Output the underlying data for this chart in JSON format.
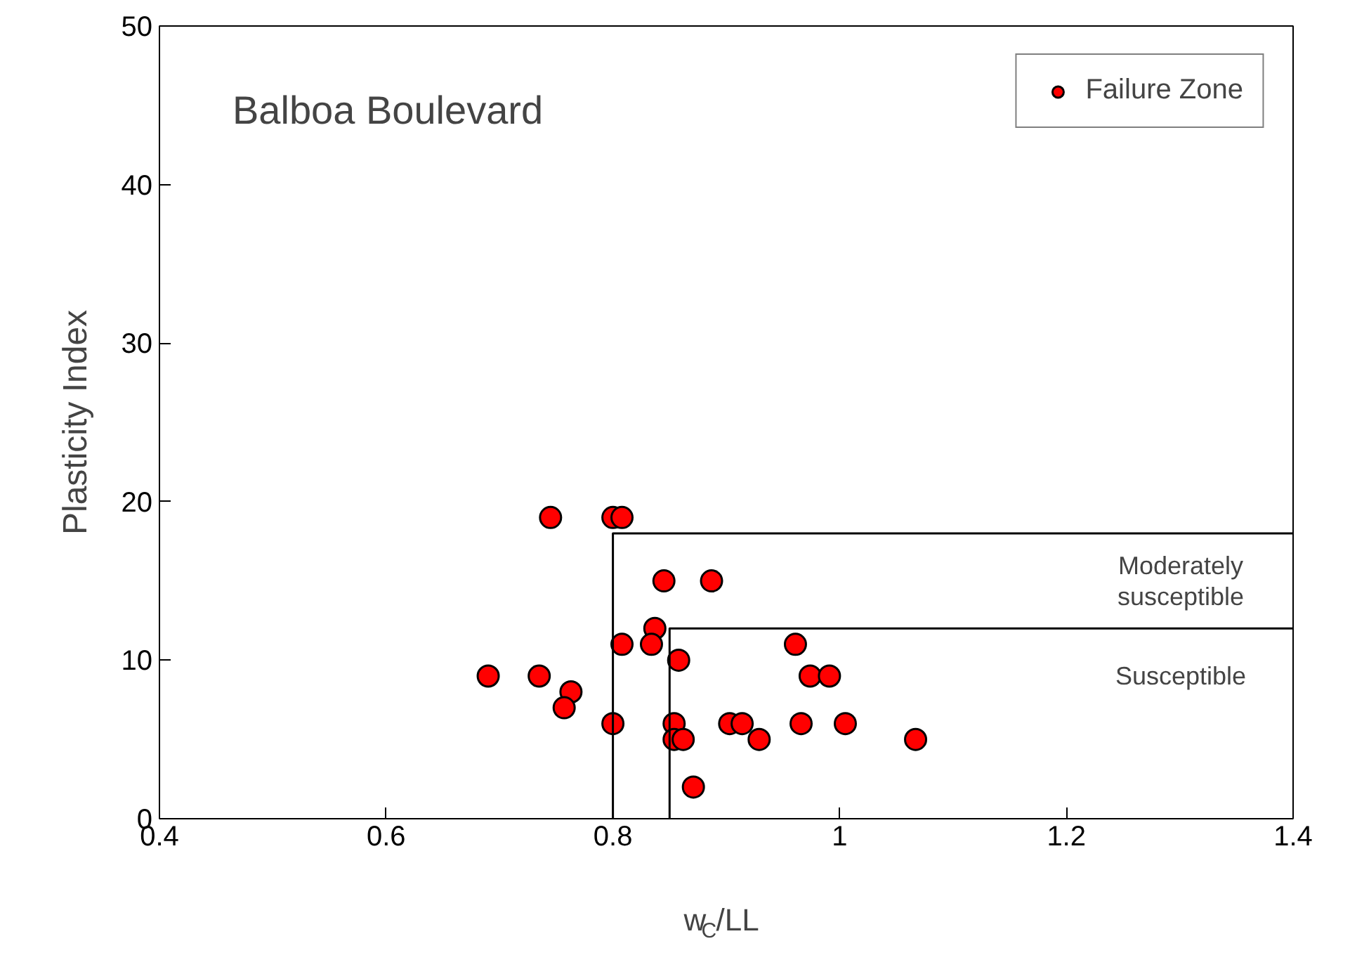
{
  "chart_data": {
    "type": "scatter",
    "title": "Balboa Boulevard",
    "xlabel": "w$_{C}$/LL",
    "ylabel": "Plasticity Index",
    "xlim": [
      0.4,
      1.4
    ],
    "xticks": [
      0.4,
      0.6,
      0.8,
      1.0,
      1.2,
      1.4
    ],
    "ylim": [
      0,
      50
    ],
    "yticks": [
      0,
      10,
      20,
      30,
      40,
      50
    ],
    "grid": false,
    "legend": "top right",
    "marker": "circle",
    "series": [
      {
        "name": "Failure Zone",
        "color": "#ff0000",
        "x": [
          0.69,
          0.735,
          0.745,
          0.763,
          0.757,
          0.8,
          0.808,
          0.8,
          0.808,
          0.845,
          0.837,
          0.834,
          0.887,
          0.858,
          0.854,
          0.854,
          0.862,
          0.871,
          0.903,
          0.914,
          0.929,
          0.961,
          0.974,
          0.991,
          0.966,
          1.005,
          1.067
        ],
        "values": [
          9,
          9,
          19,
          8,
          7,
          19,
          19,
          6,
          11,
          15,
          12,
          11,
          15,
          10,
          6,
          5,
          5,
          2,
          6,
          6,
          5,
          11,
          9,
          9,
          6,
          6,
          5
        ]
      },
      {
        "type": "line",
        "marker": "none",
        "color": "#000000",
        "x": [
          0.8,
          0.8,
          1.4
        ],
        "values": [
          0,
          18,
          18
        ]
      },
      {
        "type": "line",
        "marker": "none",
        "color": "#000000",
        "x": [
          0.85,
          0.85,
          1.4
        ],
        "values": [
          0,
          12,
          12
        ]
      }
    ],
    "annotations": [
      "Moderately\nsusceptible",
      "Susceptible"
    ]
  }
}
